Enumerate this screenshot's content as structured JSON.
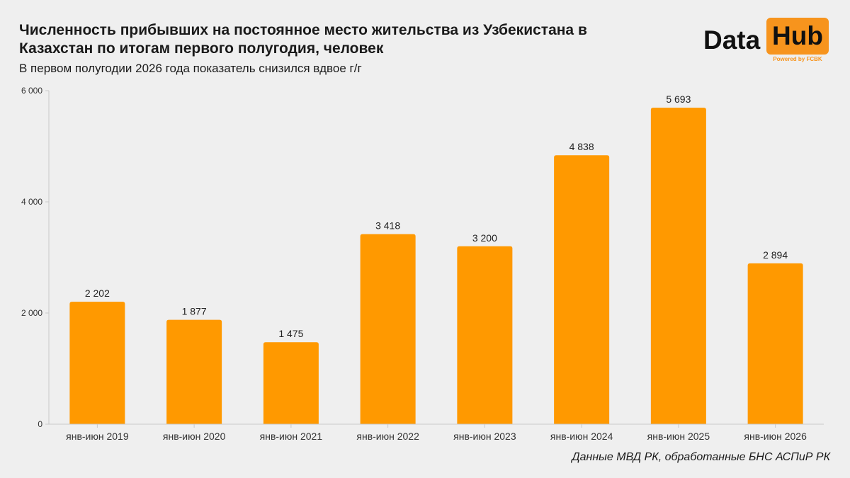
{
  "header": {
    "title": "Численность прибывших на постоянное место жительства из Узбекистана в Казахстан по итогам первого полугодия, человек",
    "subtitle": "В первом полугодии 2026 года показатель снизился вдвое г/г"
  },
  "logo": {
    "word1": "Data",
    "word2": "Hub",
    "tagline": "Powered by FCBK"
  },
  "source": "Данные МВД РК, обработанные БНС АСПиР РК",
  "colors": {
    "bar": "#ff9900",
    "accent": "#f7941d",
    "background": "#efefef",
    "axis": "#c8c8c8"
  },
  "chart_data": {
    "type": "bar",
    "categories": [
      "янв-июн 2019",
      "янв-июн 2020",
      "янв-июн 2021",
      "янв-июн 2022",
      "янв-июн 2023",
      "янв-июн 2024",
      "янв-июн 2025",
      "янв-июн 2026"
    ],
    "values": [
      2202,
      1877,
      1475,
      3418,
      3200,
      4838,
      5693,
      2894
    ],
    "value_labels": [
      "2 202",
      "1 877",
      "1 475",
      "3 418",
      "3 200",
      "4 838",
      "5 693",
      "2 894"
    ],
    "ylim": [
      0,
      6000
    ],
    "yticks": [
      0,
      2000,
      4000,
      6000
    ],
    "ytick_labels": [
      "0",
      "2 000",
      "4 000",
      "6 000"
    ],
    "grid": false,
    "legend": "none"
  }
}
